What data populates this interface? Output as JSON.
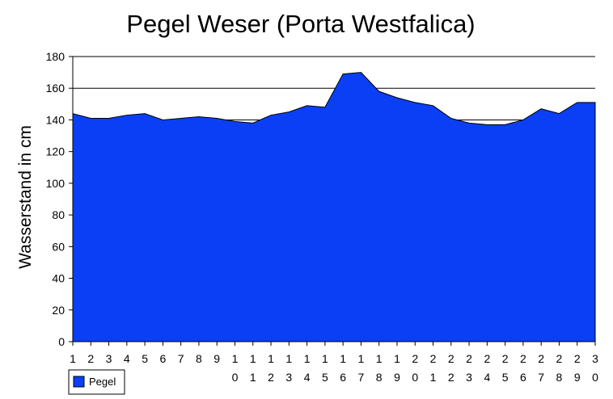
{
  "chart_data": {
    "type": "area",
    "title": "Pegel Weser (Porta Westfalica)",
    "xlabel": "",
    "ylabel": "Wasserstand in cm",
    "x": [
      "1",
      "2",
      "3",
      "4",
      "5",
      "6",
      "7",
      "8",
      "9",
      "10",
      "11",
      "12",
      "13",
      "14",
      "15",
      "16",
      "17",
      "18",
      "19",
      "20",
      "21",
      "22",
      "23",
      "24",
      "25",
      "26",
      "27",
      "28",
      "29",
      "30"
    ],
    "x_tick_lines": [
      [
        "1"
      ],
      [
        "2"
      ],
      [
        "3"
      ],
      [
        "4"
      ],
      [
        "5"
      ],
      [
        "6"
      ],
      [
        "7"
      ],
      [
        "8"
      ],
      [
        "9"
      ],
      [
        "1",
        "0"
      ],
      [
        "1",
        "1"
      ],
      [
        "1",
        "2"
      ],
      [
        "1",
        "3"
      ],
      [
        "1",
        "4"
      ],
      [
        "1",
        "5"
      ],
      [
        "1",
        "6"
      ],
      [
        "1",
        "7"
      ],
      [
        "1",
        "8"
      ],
      [
        "1",
        "9"
      ],
      [
        "2",
        "0"
      ],
      [
        "2",
        "1"
      ],
      [
        "2",
        "2"
      ],
      [
        "2",
        "3"
      ],
      [
        "2",
        "4"
      ],
      [
        "2",
        "5"
      ],
      [
        "2",
        "6"
      ],
      [
        "2",
        "7"
      ],
      [
        "2",
        "8"
      ],
      [
        "2",
        "9"
      ],
      [
        "3",
        "0"
      ]
    ],
    "series": [
      {
        "name": "Pegel",
        "color": "#0a3ff6",
        "values": [
          144,
          141,
          141,
          143,
          144,
          140,
          141,
          142,
          141,
          139,
          138,
          143,
          145,
          149,
          148,
          169,
          170,
          158,
          154,
          151,
          149,
          141,
          138,
          137,
          137,
          140,
          147,
          144,
          151,
          151
        ]
      }
    ],
    "ylim": [
      0,
      180
    ],
    "yticks": [
      0,
      20,
      40,
      60,
      80,
      100,
      120,
      140,
      160,
      180
    ],
    "grid": "horizontal",
    "legend_position": "bottom-left"
  }
}
